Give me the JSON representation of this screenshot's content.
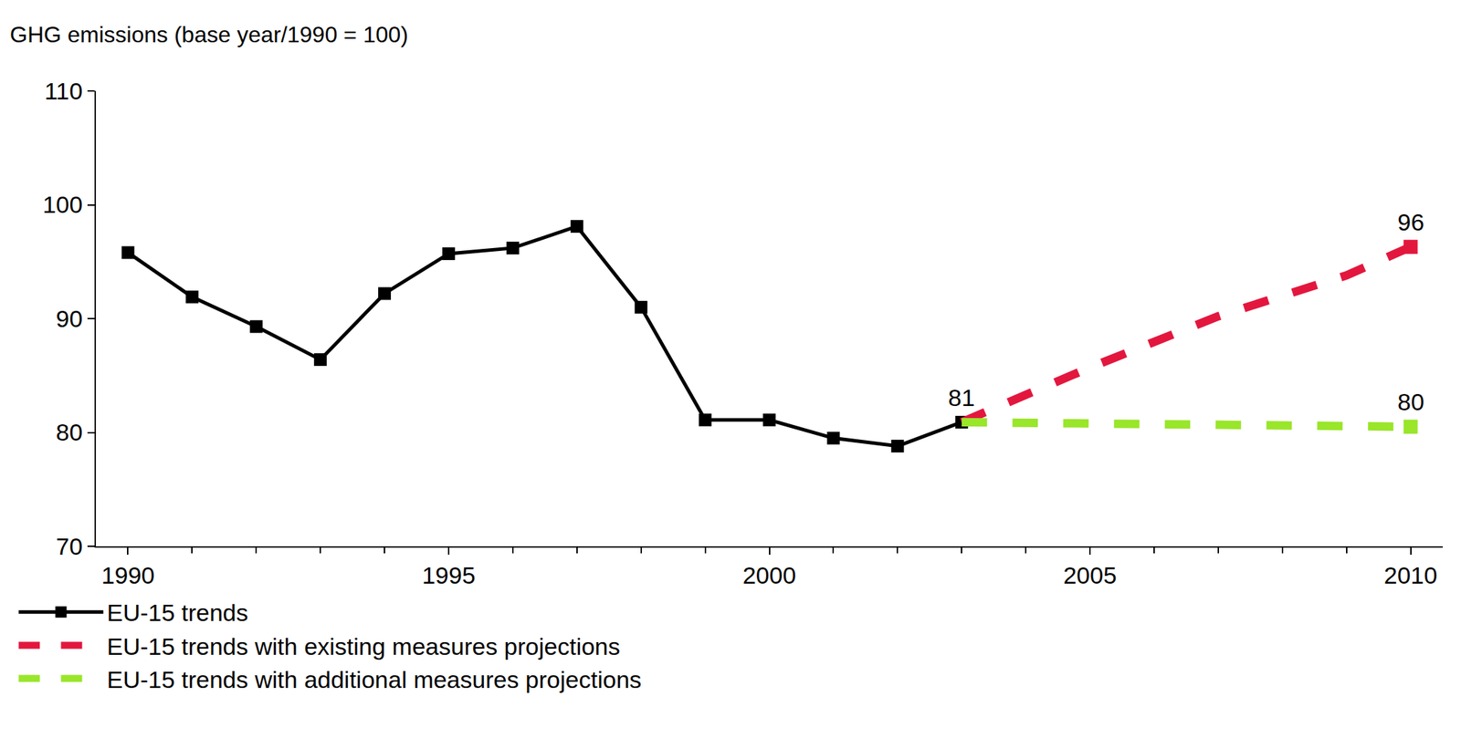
{
  "chart_data": {
    "type": "line",
    "ylabel": "GHG emissions (base year/1990 = 100)",
    "xlim": [
      1989.5,
      2010.5
    ],
    "xticks": [
      1990,
      1995,
      2000,
      2005,
      2010
    ],
    "ylim": [
      70,
      110
    ],
    "yticks": [
      70,
      80,
      90,
      100,
      110
    ],
    "grid": false,
    "legend": "bottom",
    "series": [
      {
        "name": "EU-15 trends",
        "color": "#000000",
        "marker": "square",
        "line_style": "solid",
        "x": [
          1990,
          1991,
          1992,
          1993,
          1994,
          1995,
          1996,
          1997,
          1998,
          1999,
          2000,
          2001,
          2002,
          2003
        ],
        "values": [
          95.8,
          91.9,
          89.3,
          86.4,
          92.2,
          95.7,
          96.2,
          98.1,
          91.0,
          81.1,
          81.1,
          79.5,
          78.8,
          80.9
        ]
      },
      {
        "name": "EU-15 trends with existing measures projections",
        "color": "#e3173e",
        "marker": "square",
        "line_style": "dash",
        "x": [
          2003,
          2005,
          2007,
          2009,
          2010
        ],
        "values": [
          80.9,
          85.7,
          90.2,
          93.8,
          96.3
        ]
      },
      {
        "name": "EU-15 trends with additional measures projections",
        "color": "#99e62a",
        "marker": "square",
        "line_style": "dash",
        "x": [
          2003,
          2010
        ],
        "values": [
          80.9,
          80.5
        ]
      }
    ],
    "annotations": [
      {
        "x": 2003,
        "y": 80.9,
        "text": "81"
      },
      {
        "x": 2010,
        "y": 96.3,
        "text": "96"
      },
      {
        "x": 2010,
        "y": 80.5,
        "text": "80"
      }
    ]
  }
}
